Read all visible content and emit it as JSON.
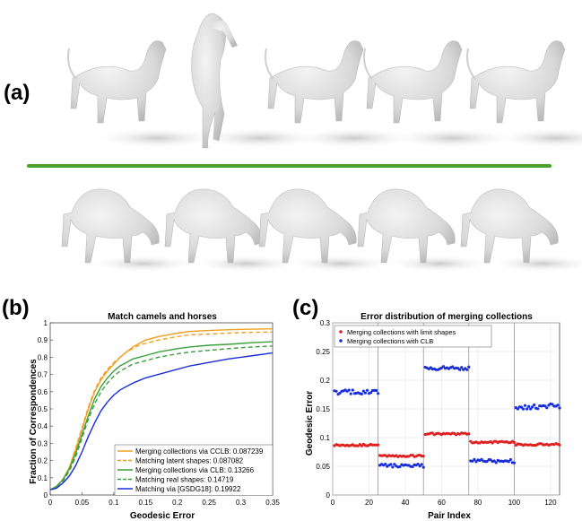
{
  "panels": {
    "a": "(a)",
    "b": "(b)",
    "c": "(c)"
  },
  "figure_a": {
    "description_icon": "animal-render-icon",
    "shape_color": "#dcdcdc",
    "shadow_color": "#c8c8c8",
    "divider_color": "#4aa02c",
    "top_row": [
      "horse",
      "horse",
      "horse",
      "horse",
      "horse"
    ],
    "bottom_row": [
      "camel",
      "camel",
      "camel",
      "camel",
      "camel"
    ]
  },
  "chart_data": [
    {
      "type": "line",
      "title": "Match camels and horses",
      "xlabel": "Geodesic Error",
      "ylabel": "Fraction of Correspondences",
      "xlim": [
        0,
        0.35
      ],
      "ylim": [
        0,
        1
      ],
      "xticks": [
        "0",
        "0.05",
        "0.1",
        "0.15",
        "0.2",
        "0.25",
        "0.3",
        "0.35"
      ],
      "yticks": [
        "0",
        "0.1",
        "0.2",
        "0.3",
        "0.4",
        "0.5",
        "0.6",
        "0.7",
        "0.8",
        "0.9",
        "1"
      ],
      "grid": false,
      "legend_position": "bottom-right",
      "x": [
        0,
        0.01,
        0.02,
        0.03,
        0.04,
        0.05,
        0.06,
        0.07,
        0.08,
        0.09,
        0.1,
        0.11,
        0.12,
        0.13,
        0.14,
        0.15,
        0.17,
        0.2,
        0.22,
        0.25,
        0.28,
        0.3,
        0.32,
        0.35
      ],
      "series": [
        {
          "name": "Merging collections via CCLB: 0.087239",
          "color": "#f0a020",
          "dash": "solid",
          "values": [
            0.03,
            0.05,
            0.09,
            0.16,
            0.26,
            0.38,
            0.5,
            0.6,
            0.67,
            0.72,
            0.76,
            0.8,
            0.83,
            0.86,
            0.88,
            0.9,
            0.92,
            0.94,
            0.95,
            0.955,
            0.96,
            0.962,
            0.963,
            0.965
          ]
        },
        {
          "name": "Matching latent shapes: 0.087082",
          "color": "#f0a020",
          "dash": "dashed",
          "values": [
            0.03,
            0.05,
            0.09,
            0.16,
            0.27,
            0.39,
            0.51,
            0.61,
            0.68,
            0.73,
            0.77,
            0.8,
            0.83,
            0.85,
            0.87,
            0.88,
            0.9,
            0.92,
            0.93,
            0.935,
            0.94,
            0.943,
            0.945,
            0.947
          ]
        },
        {
          "name": "Merging collections via CLB: 0.13266",
          "color": "#3aa03a",
          "dash": "solid",
          "values": [
            0.03,
            0.05,
            0.09,
            0.15,
            0.24,
            0.35,
            0.46,
            0.56,
            0.63,
            0.68,
            0.72,
            0.75,
            0.77,
            0.79,
            0.8,
            0.81,
            0.83,
            0.85,
            0.86,
            0.87,
            0.875,
            0.88,
            0.885,
            0.89
          ]
        },
        {
          "name": "Matching real shapes: 0.14719",
          "color": "#3aa03a",
          "dash": "dashed",
          "values": [
            0.03,
            0.05,
            0.08,
            0.14,
            0.22,
            0.33,
            0.44,
            0.53,
            0.6,
            0.65,
            0.69,
            0.72,
            0.74,
            0.76,
            0.77,
            0.78,
            0.8,
            0.82,
            0.83,
            0.84,
            0.85,
            0.855,
            0.86,
            0.865
          ]
        },
        {
          "name": "Matching via [GSDG18]: 0.19922",
          "color": "#1a2ed8",
          "dash": "solid",
          "values": [
            0.03,
            0.04,
            0.07,
            0.11,
            0.17,
            0.25,
            0.34,
            0.42,
            0.49,
            0.54,
            0.58,
            0.61,
            0.63,
            0.65,
            0.665,
            0.68,
            0.7,
            0.73,
            0.75,
            0.77,
            0.79,
            0.8,
            0.81,
            0.825
          ]
        }
      ]
    },
    {
      "type": "scatter",
      "title": "Error distribution of merging collections",
      "xlabel": "Pair Index",
      "ylabel": "Geodesic Error",
      "xlim": [
        0,
        125
      ],
      "ylim": [
        0,
        0.3
      ],
      "xticks": [
        "0",
        "20",
        "40",
        "60",
        "80",
        "100",
        "120"
      ],
      "yticks": [
        "0",
        "0.05",
        "0.1",
        "0.15",
        "0.2",
        "0.25",
        "0.3"
      ],
      "grid": true,
      "legend_position": "top-left",
      "group_boundaries": [
        25,
        50,
        75,
        100
      ],
      "series": [
        {
          "name": "Merging collections with limit shapes",
          "color": "#e02020",
          "group_means": [
            0.087,
            0.068,
            0.106,
            0.092,
            0.088
          ],
          "group_spread": [
            0.0015,
            0.0015,
            0.002,
            0.0015,
            0.0015
          ]
        },
        {
          "name": "Merging collections with CLB",
          "color": "#1a2ed8",
          "group_means": [
            0.179,
            0.051,
            0.221,
            0.059,
            0.154
          ],
          "group_spread": [
            0.004,
            0.003,
            0.003,
            0.003,
            0.005
          ]
        }
      ]
    }
  ]
}
